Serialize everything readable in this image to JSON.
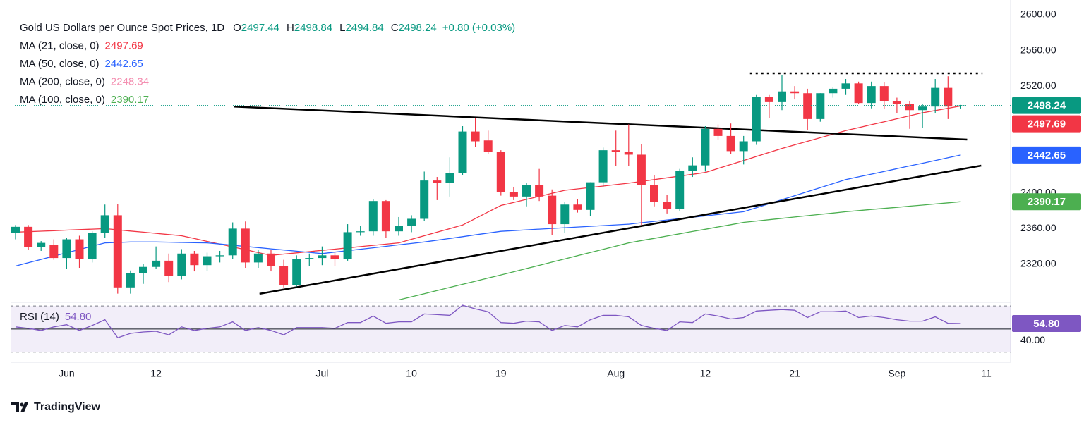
{
  "chart_data": {
    "type": "candlestick",
    "title": "Gold US Dollars per Ounce Spot Prices, 1D",
    "ohlc_labels": [
      "O",
      "H",
      "L",
      "C"
    ],
    "change": "+0.80 (+0.03%)",
    "categories": [
      null,
      null,
      null,
      null,
      "Jun",
      null,
      null,
      null,
      null,
      null,
      null,
      "12",
      null,
      null,
      null,
      null,
      null,
      null,
      null,
      null,
      null,
      null,
      null,
      null,
      "Jul",
      null,
      null,
      null,
      null,
      null,
      null,
      "10",
      null,
      null,
      null,
      null,
      null,
      null,
      "19",
      null,
      null,
      null,
      null,
      null,
      null,
      null,
      null,
      "Aug",
      null,
      null,
      null,
      null,
      null,
      null,
      "12",
      null,
      null,
      null,
      null,
      null,
      null,
      "21",
      null,
      null,
      null,
      null,
      null,
      null,
      null,
      "Sep",
      null,
      null,
      null,
      null,
      null,
      null,
      "11"
    ],
    "open": [
      2355,
      2362,
      2339,
      2342,
      2327,
      2348,
      2326,
      2355,
      2375,
      2294,
      2310,
      2317,
      2324,
      2307,
      2332,
      2319,
      2329,
      2330,
      2360,
      2322,
      2332,
      2318,
      2297,
      2326,
      2327,
      2330,
      2326,
      2356,
      2357,
      2391,
      2357,
      2363,
      2371,
      2414,
      2411,
      2422,
      2469,
      2459,
      2446,
      2401,
      2396,
      2409,
      2397,
      2365,
      2387,
      2381,
      2412,
      2448,
      2446,
      2443,
      2409,
      2390,
      2382,
      2425,
      2431,
      2472,
      2464,
      2447,
      2458,
      2508,
      2502,
      2514,
      2512,
      2483,
      2512,
      2517,
      2523,
      2501,
      2520,
      2503,
      2500,
      2493,
      2497,
      2518,
      2497.44,
      null,
      null
    ],
    "high": [
      2364,
      2364,
      2346,
      2348,
      2350,
      2352,
      2357,
      2387,
      2388,
      2313,
      2320,
      2340,
      2332,
      2337,
      2335,
      2333,
      2335,
      2367,
      2368,
      2336,
      2336,
      2325,
      2330,
      2332,
      2340,
      2334,
      2365,
      2363,
      2393,
      2392,
      2373,
      2375,
      2424,
      2418,
      2440,
      2475,
      2484,
      2470,
      2448,
      2407,
      2411,
      2427,
      2404,
      2390,
      2393,
      2412,
      2451,
      2470,
      2477,
      2455,
      2420,
      2398,
      2427,
      2440,
      2475,
      2477,
      2478,
      2464,
      2510,
      2510,
      2532,
      2520,
      2517,
      2512,
      2519,
      2528,
      2525,
      2525,
      2524,
      2507,
      2503,
      2500,
      2528,
      2531,
      2498.84,
      null,
      null
    ],
    "low": [
      2348,
      2336,
      2335,
      2325,
      2315,
      2316,
      2322,
      2350,
      2287,
      2287,
      2298,
      2315,
      2300,
      2303,
      2312,
      2312,
      2322,
      2326,
      2316,
      2316,
      2312,
      2294,
      2295,
      2318,
      2319,
      2318,
      2324,
      2352,
      2352,
      2350,
      2352,
      2356,
      2369,
      2392,
      2396,
      2420,
      2452,
      2444,
      2397,
      2392,
      2385,
      2391,
      2353,
      2355,
      2378,
      2374,
      2407,
      2430,
      2430,
      2364,
      2385,
      2377,
      2380,
      2418,
      2424,
      2460,
      2444,
      2432,
      2454,
      2484,
      2493,
      2505,
      2471,
      2480,
      2507,
      2510,
      2500,
      2495,
      2494,
      2490,
      2472,
      2473,
      2490,
      2483,
      2494.84,
      null,
      null
    ],
    "close": [
      2362,
      2339,
      2344,
      2327,
      2348,
      2326,
      2355,
      2375,
      2294,
      2310,
      2317,
      2324,
      2307,
      2332,
      2319,
      2329,
      2330,
      2360,
      2322,
      2332,
      2318,
      2297,
      2326,
      2327,
      2330,
      2326,
      2356,
      2357,
      2391,
      2357,
      2363,
      2371,
      2414,
      2411,
      2422,
      2469,
      2458,
      2446,
      2401,
      2396,
      2409,
      2396,
      2365,
      2387,
      2381,
      2412,
      2448,
      2446,
      2443,
      2409,
      2390,
      2382,
      2425,
      2431,
      2472,
      2464,
      2447,
      2458,
      2508,
      2502,
      2514,
      2512,
      2483,
      2512,
      2517,
      2523,
      2501,
      2520,
      2503,
      2500,
      2493,
      2497,
      2518,
      2497,
      2498.24,
      null,
      null
    ],
    "colors": {
      "up": "#089981",
      "down": "#f23645"
    },
    "series": [
      {
        "name": "MA (21, close, 0)",
        "color": "#f23645",
        "values": [
          2356,
          2356.6,
          2357.1,
          2357.7,
          2358.3,
          2358.9,
          2359.4,
          2360,
          2358.7,
          2357.3,
          2356,
          2354.7,
          2353.3,
          2352,
          2348.9,
          2345.7,
          2342.6,
          2339.4,
          2336.3,
          2333.1,
          2330,
          2331.4,
          2332.8,
          2334.2,
          2335.6,
          2337,
          2338.4,
          2339.8,
          2341.2,
          2342.6,
          2344,
          2348,
          2352,
          2356,
          2360,
          2364,
          2371.3,
          2378.7,
          2386,
          2389.4,
          2392.8,
          2396.2,
          2399.6,
          2403,
          2404.6,
          2406.2,
          2407.8,
          2409.4,
          2411,
          2413,
          2415,
          2417,
          2419,
          2421,
          2423,
          2427.5,
          2432,
          2436.5,
          2441,
          2445.5,
          2450,
          2454,
          2458,
          2462,
          2466,
          2470,
          2473.3,
          2476.7,
          2480,
          2483.3,
          2486.7,
          2490,
          2492.6,
          2495.1,
          2497.69,
          null,
          null
        ]
      },
      {
        "name": "MA (50, close, 0)",
        "color": "#2962ff",
        "values": [
          2318,
          2321.7,
          2325.4,
          2329.1,
          2332.9,
          2336.6,
          2340.3,
          2344,
          2344.5,
          2345,
          2345,
          2345,
          2344.8,
          2344.5,
          2344.2,
          2344,
          2342.7,
          2341.3,
          2340,
          2338.7,
          2337.3,
          2336,
          2334.7,
          2333.3,
          2332,
          2333.6,
          2335.3,
          2336.9,
          2338.5,
          2340.1,
          2341.8,
          2343.4,
          2345,
          2347,
          2349,
          2351,
          2353,
          2355,
          2357,
          2357.8,
          2358.6,
          2359.4,
          2360.2,
          2361,
          2361.8,
          2362.6,
          2363.4,
          2364.2,
          2365,
          2366.6,
          2368.1,
          2369.7,
          2371.2,
          2372.8,
          2374.3,
          2375.9,
          2377.4,
          2379,
          2383.5,
          2388,
          2392.5,
          2397,
          2401.5,
          2406,
          2410.5,
          2415,
          2418.1,
          2421.1,
          2424.2,
          2427.3,
          2430.4,
          2433.4,
          2436.5,
          2439.6,
          2442.65,
          null,
          null
        ]
      },
      {
        "name": "MA (200, close, 0)",
        "color": "#f48fb1",
        "value": 2248.34
      },
      {
        "name": "MA (100, close, 0)",
        "color": "#4caf50",
        "values": [
          null,
          null,
          null,
          null,
          null,
          null,
          null,
          null,
          null,
          null,
          null,
          null,
          null,
          null,
          null,
          null,
          null,
          null,
          null,
          null,
          null,
          null,
          null,
          null,
          null,
          null,
          null,
          null,
          null,
          null,
          2280,
          2283.5,
          2287,
          2290.5,
          2294,
          2297.5,
          2301,
          2304.5,
          2308,
          2311.6,
          2315.2,
          2318.8,
          2322.4,
          2326,
          2329.6,
          2333.2,
          2336.8,
          2340.4,
          2344,
          2346.6,
          2349.1,
          2351.7,
          2354.2,
          2356.8,
          2359.3,
          2361.9,
          2364.4,
          2367,
          2368.5,
          2370,
          2371.5,
          2373,
          2374.5,
          2376,
          2377.5,
          2379,
          2380.2,
          2381.5,
          2382.7,
          2383.9,
          2385.2,
          2386.4,
          2387.7,
          2388.9,
          2390.17,
          null,
          null
        ]
      }
    ],
    "ylim": [
      2280.4,
      2616.6
    ],
    "yticks": [
      {
        "value": 2320,
        "label": "2320.00"
      },
      {
        "value": 2360,
        "label": "2360.00"
      },
      {
        "value": 2400,
        "label": "2400.00"
      },
      {
        "value": 2520,
        "label": "2520.00"
      },
      {
        "value": 2560,
        "label": "2560.00"
      },
      {
        "value": 2600,
        "label": "2600.00"
      }
    ],
    "grid": false,
    "trendlines": [
      {
        "x": [
          17.1,
          74.5
        ],
        "y": [
          2497,
          2460
        ],
        "color": "#000000"
      },
      {
        "x": [
          19.1,
          75.6
        ],
        "y": [
          2286.8,
          2430.7
        ],
        "color": "#000000"
      },
      {
        "x": [
          57.5,
          75.7
        ],
        "y": [
          2534.3,
          2534.3
        ],
        "color": "#000000",
        "dashed": true
      }
    ],
    "rsi": {
      "name": "RSI (14)",
      "color": "#7e57c2",
      "values": [
        51.9,
        50.6,
        48.8,
        51.9,
        53.8,
        48.8,
        53.1,
        58.1,
        42.5,
        46.3,
        47.5,
        48.1,
        45,
        51.9,
        48.8,
        50.6,
        51.9,
        56.3,
        48.8,
        51.3,
        48.8,
        45,
        51.3,
        51.3,
        51.3,
        50.6,
        55.6,
        55.6,
        61.3,
        55,
        56.3,
        56.3,
        63.1,
        62.5,
        61.9,
        70.6,
        67.5,
        65,
        55.6,
        55,
        56.9,
        56.3,
        48.8,
        53.1,
        51.9,
        58.1,
        61.9,
        61.9,
        60.6,
        53.1,
        50.6,
        48.8,
        56.3,
        55.6,
        63.1,
        61.3,
        58.8,
        60,
        65.6,
        66.3,
        66.9,
        66.3,
        60,
        65,
        65,
        65.6,
        60,
        61.3,
        60,
        58.1,
        56.9,
        56.9,
        60.6,
        55,
        54.8,
        null,
        null
      ],
      "value_label": "54.80",
      "ylim": [
        22.5,
        72.5
      ],
      "yticks": [
        {
          "value": 40,
          "label": "40.00"
        }
      ],
      "levels": [
        30,
        70
      ],
      "midline": 50
    },
    "brand": "TradingView"
  }
}
